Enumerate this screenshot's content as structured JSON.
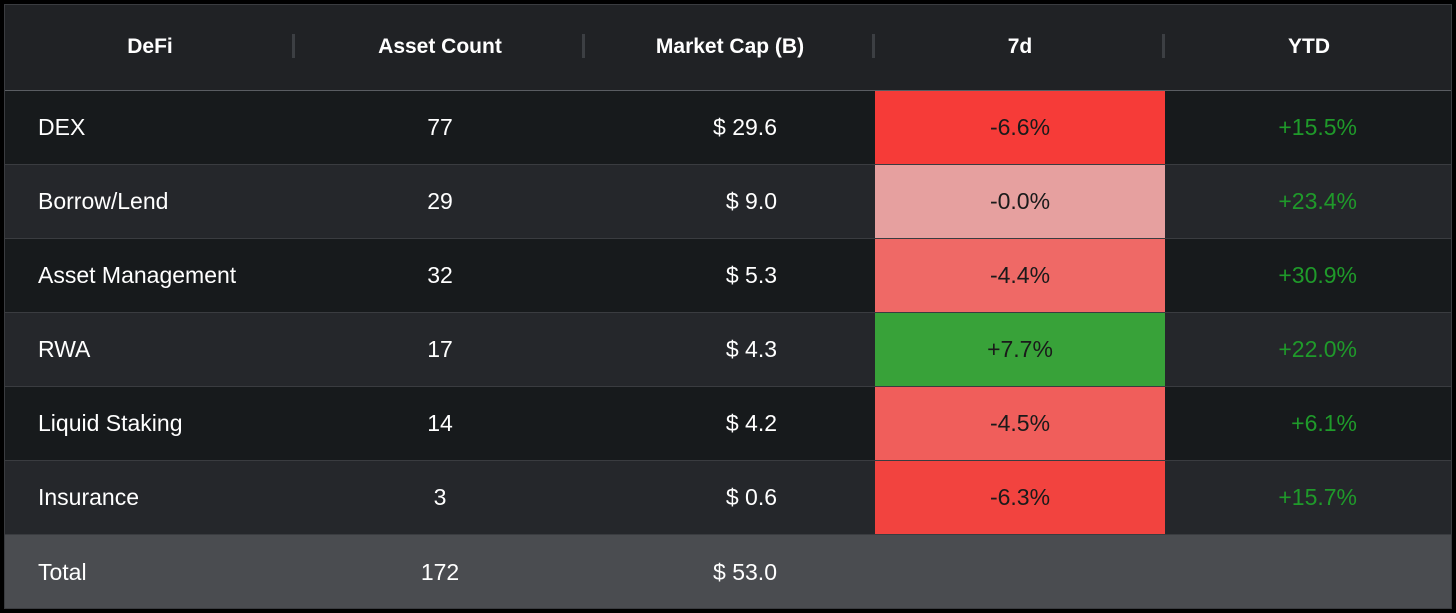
{
  "chart_data": {
    "type": "table",
    "columns": [
      "DeFi",
      "Asset Count",
      "Market Cap (B)",
      "7d",
      "YTD"
    ],
    "rows": [
      {
        "name": "DEX",
        "count": "77",
        "mcap": "$ 29.6",
        "wk": "-6.6%",
        "ytd": "+15.5%",
        "wk_color": "#f63b38"
      },
      {
        "name": "Borrow/Lend",
        "count": "29",
        "mcap": "$ 9.0",
        "wk": "-0.0%",
        "ytd": "+23.4%",
        "wk_color": "#e6a09f"
      },
      {
        "name": "Asset Management",
        "count": "32",
        "mcap": "$ 5.3",
        "wk": "-4.4%",
        "ytd": "+30.9%",
        "wk_color": "#ef6966"
      },
      {
        "name": "RWA",
        "count": "17",
        "mcap": "$ 4.3",
        "wk": "+7.7%",
        "ytd": "+22.0%",
        "wk_color": "#38a239"
      },
      {
        "name": "Liquid Staking",
        "count": "14",
        "mcap": "$ 4.2",
        "wk": "-4.5%",
        "ytd": "+6.1%",
        "wk_color": "#f05e5b"
      },
      {
        "name": "Insurance",
        "count": "3",
        "mcap": "$ 0.6",
        "wk": "-6.3%",
        "ytd": "+15.7%",
        "wk_color": "#f2433f"
      }
    ],
    "total": {
      "name": "Total",
      "count": "172",
      "mcap": "$ 53.0"
    },
    "ytd_color": "#1f9a2a"
  }
}
